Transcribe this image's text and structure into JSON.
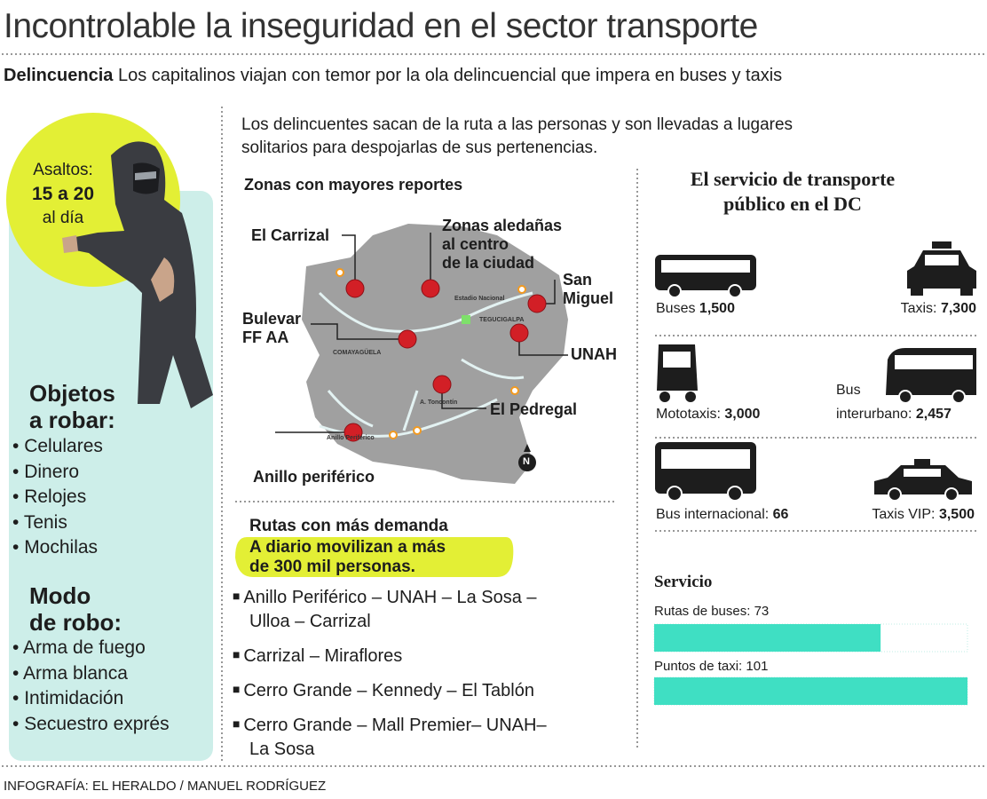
{
  "header": {
    "title": "Incontrolable la inseguridad en el sector transporte",
    "kicker": "Delincuencia",
    "subtitle": "Los capitalinos viajan con temor por la ola delincuencial que impera en buses y taxis"
  },
  "sidebar": {
    "badge": [
      "Asaltos:",
      "15 a 20",
      "al día"
    ],
    "objects": {
      "title": [
        "Objetos",
        "a robar:"
      ],
      "items": [
        "Celulares",
        "Dinero",
        "Relojes",
        "Tenis",
        "Mochilas"
      ]
    },
    "modes": {
      "title": [
        "Modo",
        "de robo:"
      ],
      "items": [
        "Arma de fuego",
        "Arma blanca",
        "Intimidación",
        "Secuestro exprés"
      ]
    }
  },
  "intro": [
    "Los delincuentes sacan de la ruta a las personas y son llevadas a lugares",
    "solitarios para despojarlas de sus pertenencias."
  ],
  "map": {
    "title": "Zonas con mayores reportes",
    "zones": [
      [
        "El Carrizal"
      ],
      [
        "Zonas aledañas",
        "al centro",
        "de la ciudad"
      ],
      [
        "San",
        "Miguel"
      ],
      [
        "Bulevar",
        "FF AA"
      ],
      [
        "UNAH"
      ],
      [
        "El Pedregal"
      ],
      [
        "Anillo periférico"
      ]
    ],
    "places": [
      "Estadio Nacional",
      "TEGUCIGALPA",
      "COMAYAGÜELA",
      "A. Toncontín",
      "Anillo Periférico"
    ],
    "north": "N"
  },
  "routes": {
    "title": "Rutas con más demanda",
    "highlight": [
      "A diario movilizan a más",
      "de 300 mil personas."
    ],
    "items": [
      [
        "Anillo Periférico – UNAH – La Sosa –",
        "Ulloa – Carrizal"
      ],
      [
        "Carrizal – Miraflores"
      ],
      [
        "Cerro Grande – Kennedy – El Tablón"
      ],
      [
        "Cerro Grande – Mall Premier– UNAH–",
        "La Sosa"
      ]
    ]
  },
  "transport": {
    "title": [
      "El servicio de transporte",
      "público en el DC"
    ],
    "vehicles": [
      {
        "label": [
          "Buses"
        ],
        "count": "1,500"
      },
      {
        "label": [
          "Taxis:"
        ],
        "count": "7,300"
      },
      {
        "label": [
          "Mototaxis:"
        ],
        "count": "3,000"
      },
      {
        "label": [
          "Bus",
          "interurbano:"
        ],
        "count": "2,457"
      },
      {
        "label": [
          "Bus internacional:"
        ],
        "count": "66"
      },
      {
        "label": [
          "Taxis VIP:"
        ],
        "count": "3,500"
      }
    ]
  },
  "service": {
    "title": "Servicio",
    "items": [
      {
        "label": "Rutas de buses:",
        "value": 73
      },
      {
        "label": "Puntos de taxi:",
        "value": 101
      }
    ]
  },
  "footer": "INFOGRAFÍA: EL HERALDO / MANUEL RODRÍGUEZ"
}
